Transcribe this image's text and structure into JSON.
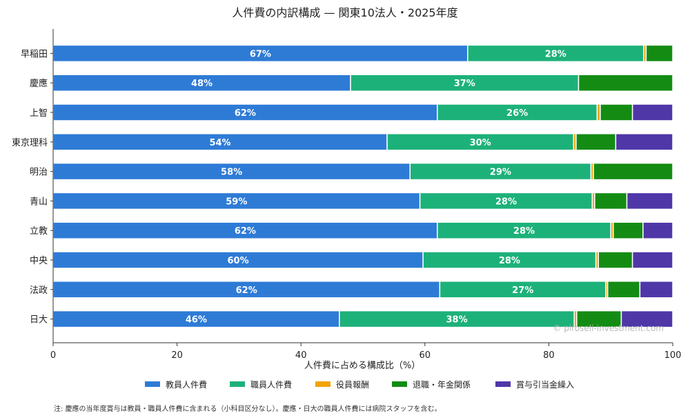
{
  "chart_data": {
    "type": "bar",
    "orientation": "horizontal",
    "stacked": true,
    "title": "人件費の内訳構成 — 関東10法人・2025年度",
    "xlabel": "人件費に占める構成比（%）",
    "ylabel": "",
    "xlim": [
      0,
      100
    ],
    "xticks": [
      "0",
      "20",
      "40",
      "60",
      "80",
      "100"
    ],
    "grid": false,
    "legend_position": "bottom",
    "categories": [
      "早稲田",
      "慶應",
      "上智",
      "東京理科",
      "明治",
      "青山",
      "立教",
      "中央",
      "法政",
      "日大"
    ],
    "series": [
      {
        "name": "教員人件費",
        "color": "#2e7bd6",
        "values": [
          66.9,
          48.0,
          62.0,
          53.9,
          57.6,
          59.2,
          62.0,
          59.7,
          62.4,
          46.2
        ]
      },
      {
        "name": "職員人件費",
        "color": "#1db17a",
        "values": [
          28.4,
          36.8,
          25.8,
          30.1,
          29.2,
          27.8,
          28.0,
          27.9,
          26.8,
          37.9
        ]
      },
      {
        "name": "役員報酬",
        "color": "#f0a30a",
        "values": [
          0.4,
          0.0,
          0.5,
          0.4,
          0.4,
          0.4,
          0.4,
          0.4,
          0.3,
          0.4
        ]
      },
      {
        "name": "退職・年金関係",
        "color": "#148c14",
        "values": [
          4.3,
          15.2,
          5.2,
          6.4,
          12.8,
          5.2,
          4.8,
          5.5,
          5.2,
          7.2
        ]
      },
      {
        "name": "賞与引当金繰入",
        "color": "#4f37a8",
        "values": [
          0.0,
          0.0,
          6.5,
          9.2,
          0.0,
          7.4,
          4.8,
          6.5,
          5.3,
          8.3
        ]
      }
    ],
    "segment_labels": [
      [
        "67%",
        "28%",
        "",
        "",
        ""
      ],
      [
        "48%",
        "37%",
        "",
        "",
        ""
      ],
      [
        "62%",
        "26%",
        "",
        "",
        ""
      ],
      [
        "54%",
        "30%",
        "",
        "",
        ""
      ],
      [
        "58%",
        "29%",
        "",
        "",
        ""
      ],
      [
        "59%",
        "28%",
        "",
        "",
        ""
      ],
      [
        "62%",
        "28%",
        "",
        "",
        ""
      ],
      [
        "60%",
        "28%",
        "",
        "",
        ""
      ],
      [
        "62%",
        "27%",
        "",
        "",
        ""
      ],
      [
        "46%",
        "38%",
        "",
        "",
        ""
      ]
    ]
  },
  "watermark": "© piroseli-investment.com",
  "footnote": "注: 慶應の当年度賞与は教員・職員人件費に含まれる（小科目区分なし）。慶應・日大の職員人件費には病院スタッフを含む。"
}
